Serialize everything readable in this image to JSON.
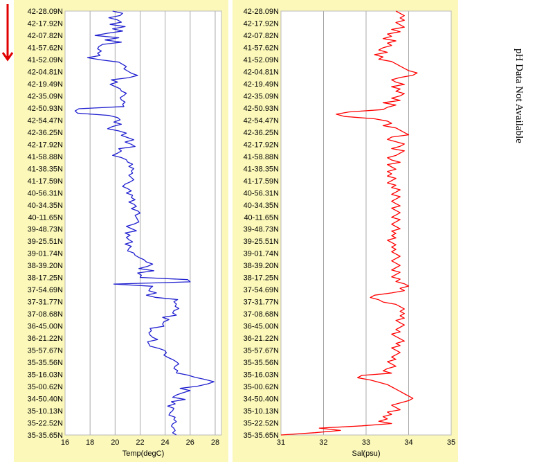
{
  "chart_data": [
    {
      "type": "line",
      "xlabel": "Temp(degC)",
      "xlim": [
        16,
        28.5
      ],
      "xticks": [
        16,
        18,
        20,
        22,
        24,
        26,
        28
      ],
      "y_tick_labels": [
        "42-28.09N",
        "42-17.92N",
        "42-07.82N",
        "41-57.62N",
        "41-52.09N",
        "42-04.81N",
        "42-19.49N",
        "42-35.09N",
        "42-50.93N",
        "42-54.47N",
        "42-36.25N",
        "42-17.92N",
        "41-58.88N",
        "41-38.35N",
        "41-17.59N",
        "40-56.31N",
        "40-34.35N",
        "40-11.65N",
        "39-48.73N",
        "39-25.51N",
        "39-01.74N",
        "38-39.20N",
        "38-17.25N",
        "37-54.69N",
        "37-31.77N",
        "37-08.68N",
        "36-45.00N",
        "36-21.22N",
        "35-57.67N",
        "35-35.56N",
        "35-16.03N",
        "35-00.62N",
        "34-50.40N",
        "35-10.13N",
        "35-22.52N",
        "35-35.65N"
      ],
      "grid": true,
      "color": "#1f1fd0",
      "series": [
        {
          "values": [
            19.8,
            20.6,
            20.4,
            19.5,
            20.2,
            20.5,
            19.6,
            20.8,
            19.8,
            20.6,
            19.4,
            18.4,
            20.3,
            19.2,
            20.5,
            19.0,
            18.7,
            18.6,
            18.9,
            18.6,
            18.8,
            17.8,
            18.9,
            20.3,
            20.6,
            20.9,
            20.7,
            21.0,
            21.3,
            21.8,
            21.1,
            19.7,
            20.2,
            19.6,
            20.0,
            20.4,
            20.5,
            20.9,
            20.7,
            20.4,
            20.5,
            20.8,
            20.6,
            20.7,
            17.1,
            16.8,
            17.0,
            19.5,
            20.2,
            20.4,
            19.9,
            20.5,
            19.8,
            19.4,
            20.3,
            20.9,
            20.5,
            21.0,
            21.5,
            20.8,
            21.3,
            21.6,
            20.3,
            20.5,
            20.2,
            19.8,
            20.5,
            20.9,
            21.0,
            21.4,
            21.1,
            21.5,
            21.3,
            21.4,
            21.1,
            21.3,
            21.5,
            21.2,
            20.8,
            20.6,
            21.0,
            21.3,
            20.9,
            21.4,
            21.3,
            21.6,
            21.1,
            21.5,
            21.7,
            21.3,
            21.8,
            22.0,
            21.6,
            21.7,
            21.8,
            21.9,
            21.5,
            20.9,
            21.3,
            21.7,
            20.8,
            21.2,
            20.9,
            21.1,
            21.4,
            20.8,
            21.3,
            21.1,
            21.0,
            21.5,
            21.6,
            21.9,
            22.3,
            22.5,
            23.0,
            22.6,
            21.9,
            23.1,
            21.8,
            22.1,
            22.0,
            25.8,
            26.0,
            19.9,
            23.0,
            22.8,
            22.7,
            23.3,
            22.5,
            23.2,
            25.0,
            24.7,
            24.9,
            24.8,
            25.1,
            24.7,
            24.6,
            24.9,
            23.8,
            24.3,
            23.9,
            23.8,
            23.9,
            22.8,
            22.9,
            22.7,
            22.8,
            23.0,
            23.4,
            22.6,
            22.7,
            22.8,
            23.5,
            24.0,
            24.1,
            23.9,
            24.2,
            24.6,
            24.9,
            25.1,
            24.8,
            24.7,
            25.0,
            24.9,
            25.8,
            26.4,
            27.2,
            27.9,
            27.4,
            26.6,
            25.2,
            26.0,
            25.4,
            24.9,
            24.6,
            25.6,
            24.5,
            24.8,
            24.2,
            24.7,
            24.6,
            24.4,
            24.3,
            24.8,
            24.7,
            24.9,
            24.6,
            24.5,
            24.7,
            24.8,
            24.6,
            24.9
          ]
        }
      ]
    },
    {
      "type": "line",
      "xlabel": "Sal(psu)",
      "xlim": [
        31,
        35
      ],
      "xticks": [
        31,
        32,
        33,
        34,
        35
      ],
      "y_tick_labels": [
        "42-28.09N",
        "42-17.92N",
        "42-07.82N",
        "41-57.62N",
        "41-52.09N",
        "42-04.81N",
        "42-19.49N",
        "42-35.09N",
        "42-50.93N",
        "42-54.47N",
        "42-36.25N",
        "42-17.92N",
        "41-58.88N",
        "41-38.35N",
        "41-17.59N",
        "40-56.31N",
        "40-34.35N",
        "40-11.65N",
        "39-48.73N",
        "39-25.51N",
        "39-01.74N",
        "38-39.20N",
        "38-17.25N",
        "37-54.69N",
        "37-31.77N",
        "37-08.68N",
        "36-45.00N",
        "36-21.22N",
        "35-57.67N",
        "35-35.56N",
        "35-16.03N",
        "35-00.62N",
        "34-50.40N",
        "35-10.13N",
        "35-22.52N",
        "35-35.65N"
      ],
      "grid": true,
      "color": "#ff0000",
      "series": [
        {
          "values": [
            33.7,
            33.8,
            33.9,
            33.8,
            33.9,
            33.7,
            33.8,
            33.9,
            33.6,
            33.8,
            33.5,
            33.6,
            33.4,
            33.7,
            33.5,
            33.6,
            33.4,
            33.3,
            33.5,
            33.2,
            33.4,
            33.3,
            33.6,
            33.7,
            33.8,
            33.9,
            34.0,
            34.2,
            34.1,
            33.8,
            33.6,
            33.7,
            33.9,
            33.6,
            33.8,
            33.7,
            33.9,
            33.8,
            33.6,
            33.8,
            33.4,
            33.7,
            33.5,
            33.4,
            32.6,
            32.3,
            32.5,
            33.2,
            33.5,
            33.6,
            33.4,
            33.7,
            33.8,
            33.9,
            34.0,
            33.6,
            33.5,
            33.7,
            33.9,
            33.8,
            33.6,
            33.9,
            33.8,
            33.7,
            33.5,
            33.6,
            33.8,
            33.5,
            33.6,
            33.7,
            33.5,
            33.6,
            33.5,
            33.7,
            33.6,
            33.5,
            33.7,
            33.6,
            33.8,
            33.7,
            33.6,
            33.8,
            33.7,
            33.6,
            33.7,
            33.8,
            33.6,
            33.7,
            33.8,
            33.7,
            33.6,
            33.8,
            33.7,
            33.6,
            33.7,
            33.8,
            33.6,
            33.7,
            33.6,
            33.7,
            33.5,
            33.6,
            33.7,
            33.6,
            33.7,
            33.6,
            33.7,
            33.8,
            33.7,
            33.6,
            33.7,
            33.8,
            33.7,
            33.6,
            33.8,
            33.7,
            33.6,
            33.8,
            33.7,
            33.9,
            34.0,
            33.8,
            33.9,
            33.6,
            33.2,
            33.1,
            33.3,
            33.4,
            33.7,
            33.8,
            33.9,
            33.8,
            33.9,
            33.8,
            33.9,
            33.7,
            33.8,
            33.9,
            33.8,
            33.7,
            33.8,
            33.6,
            33.7,
            33.8,
            33.9,
            33.7,
            33.8,
            33.6,
            33.7,
            33.8,
            33.7,
            33.6,
            33.7,
            33.5,
            33.6,
            33.7,
            33.5,
            33.4,
            33.6,
            32.9,
            32.8,
            33.1,
            33.3,
            33.5,
            33.6,
            33.7,
            33.8,
            33.9,
            34.0,
            34.1,
            34.0,
            33.8,
            33.6,
            33.7,
            33.8,
            33.5,
            33.6,
            33.4,
            33.5,
            33.3,
            33.6,
            32.9,
            31.9,
            32.4,
            31.8,
            31.0
          ]
        }
      ]
    }
  ],
  "side_note": "pH Data Not Available",
  "indicator": {
    "color": "#e00000"
  }
}
